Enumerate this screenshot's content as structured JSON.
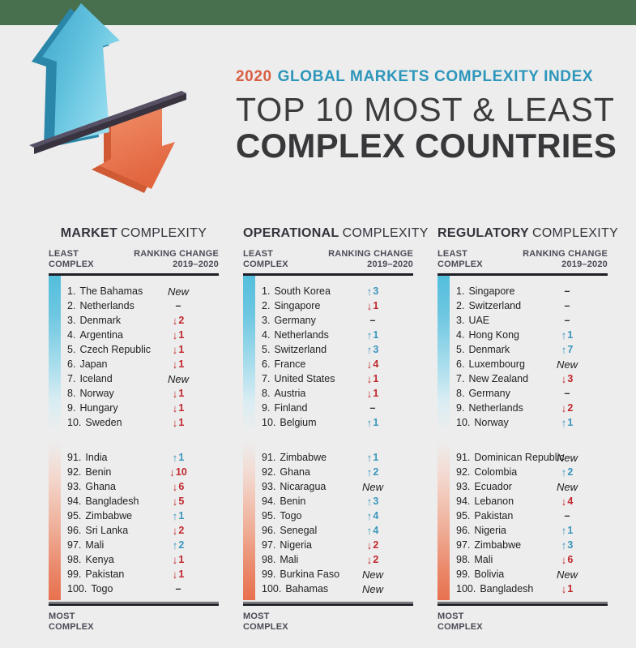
{
  "page": {
    "background": "#ededed",
    "top_band_color": "#48704e"
  },
  "header": {
    "kicker_year": "2020",
    "kicker_text": "GLOBAL MARKETS COMPLEXITY INDEX",
    "kicker_year_color": "#d95f43",
    "kicker_text_color": "#2d96ba",
    "title_line1": "TOP 10 MOST & LEAST",
    "title_line2": "COMPLEX COUNTRIES"
  },
  "hero_graphic": {
    "description": "3D blue up arrow and orange down arrow balanced on a dark plank",
    "up_arrow_color": "#52b8d8",
    "down_arrow_color": "#e8795c",
    "plank_color": "#38333f"
  },
  "labels": {
    "least_line1": "LEAST",
    "least_line2": "COMPLEX",
    "ranking_line1": "RANKING CHANGE",
    "ranking_line2": "2019–2020",
    "most_line1": "MOST",
    "most_line2": "COMPLEX"
  },
  "glyphs": {
    "up_arrow": "↑",
    "down_arrow": "↓",
    "no_change": "–",
    "new_label": "New"
  },
  "status_colors": {
    "up": "#3a96bc",
    "down": "#c0272d",
    "neutral": "#2b2b2b",
    "bar_blue": "#53bedc",
    "bar_orange": "#e7714f"
  },
  "chart_data": {
    "type": "table",
    "title": "2020 Global Markets Complexity Index — Top 10 Most & Least Complex Countries",
    "columns_note": "three ranking tables: ranks 1-10 least complex, ranks 91-100 most complex, with 2019–2020 ranking change"
  },
  "columns": [
    {
      "title_bold": "MARKET",
      "title_rest": "COMPLEXITY",
      "least": [
        {
          "rank": "1.",
          "country": "The Bahamas",
          "change": "new"
        },
        {
          "rank": "2.",
          "country": "Netherlands",
          "change": "same"
        },
        {
          "rank": "3.",
          "country": "Denmark",
          "change": "down",
          "value": "2"
        },
        {
          "rank": "4.",
          "country": "Argentina",
          "change": "down",
          "value": "1"
        },
        {
          "rank": "5.",
          "country": "Czech Republic",
          "change": "down",
          "value": "1"
        },
        {
          "rank": "6.",
          "country": "Japan",
          "change": "down",
          "value": "1"
        },
        {
          "rank": "7.",
          "country": "Iceland",
          "change": "new"
        },
        {
          "rank": "8.",
          "country": "Norway",
          "change": "down",
          "value": "1"
        },
        {
          "rank": "9.",
          "country": "Hungary",
          "change": "down",
          "value": "1"
        },
        {
          "rank": "10.",
          "country": "Sweden",
          "change": "down",
          "value": "1"
        }
      ],
      "most": [
        {
          "rank": "91.",
          "country": "India",
          "change": "up",
          "value": "1"
        },
        {
          "rank": "92.",
          "country": "Benin",
          "change": "down",
          "value": "10"
        },
        {
          "rank": "93.",
          "country": "Ghana",
          "change": "down",
          "value": "6"
        },
        {
          "rank": "94.",
          "country": "Bangladesh",
          "change": "down",
          "value": "5"
        },
        {
          "rank": "95.",
          "country": "Zimbabwe",
          "change": "up",
          "value": "1"
        },
        {
          "rank": "96.",
          "country": "Sri Lanka",
          "change": "down",
          "value": "2"
        },
        {
          "rank": "97.",
          "country": "Mali",
          "change": "up",
          "value": "2"
        },
        {
          "rank": "98.",
          "country": "Kenya",
          "change": "down",
          "value": "1"
        },
        {
          "rank": "99.",
          "country": "Pakistan",
          "change": "down",
          "value": "1"
        },
        {
          "rank": "100.",
          "country": "Togo",
          "change": "same"
        }
      ]
    },
    {
      "title_bold": "OPERATIONAL",
      "title_rest": "COMPLEXITY",
      "least": [
        {
          "rank": "1.",
          "country": "South Korea",
          "change": "up",
          "value": "3"
        },
        {
          "rank": "2.",
          "country": "Singapore",
          "change": "down",
          "value": "1"
        },
        {
          "rank": "3.",
          "country": "Germany",
          "change": "same"
        },
        {
          "rank": "4.",
          "country": "Netherlands",
          "change": "up",
          "value": "1"
        },
        {
          "rank": "5.",
          "country": "Switzerland",
          "change": "up",
          "value": "3"
        },
        {
          "rank": "6.",
          "country": "France",
          "change": "down",
          "value": "4"
        },
        {
          "rank": "7.",
          "country": "United States",
          "change": "down",
          "value": "1"
        },
        {
          "rank": "8.",
          "country": "Austria",
          "change": "down",
          "value": "1"
        },
        {
          "rank": "9.",
          "country": "Finland",
          "change": "same"
        },
        {
          "rank": "10.",
          "country": "Belgium",
          "change": "up",
          "value": "1"
        }
      ],
      "most": [
        {
          "rank": "91.",
          "country": "Zimbabwe",
          "change": "up",
          "value": "1"
        },
        {
          "rank": "92.",
          "country": "Ghana",
          "change": "up",
          "value": "2"
        },
        {
          "rank": "93.",
          "country": "Nicaragua",
          "change": "new"
        },
        {
          "rank": "94.",
          "country": "Benin",
          "change": "up",
          "value": "3"
        },
        {
          "rank": "95.",
          "country": "Togo",
          "change": "up",
          "value": "4"
        },
        {
          "rank": "96.",
          "country": "Senegal",
          "change": "up",
          "value": "4"
        },
        {
          "rank": "97.",
          "country": "Nigeria",
          "change": "down",
          "value": "2"
        },
        {
          "rank": "98.",
          "country": "Mali",
          "change": "down",
          "value": "2"
        },
        {
          "rank": "99.",
          "country": "Burkina Faso",
          "change": "new"
        },
        {
          "rank": "100.",
          "country": "Bahamas",
          "change": "new"
        }
      ]
    },
    {
      "title_bold": "REGULATORY",
      "title_rest": "COMPLEXITY",
      "least": [
        {
          "rank": "1.",
          "country": "Singapore",
          "change": "same"
        },
        {
          "rank": "2.",
          "country": "Switzerland",
          "change": "same"
        },
        {
          "rank": "3.",
          "country": "UAE",
          "change": "same"
        },
        {
          "rank": "4.",
          "country": "Hong Kong",
          "change": "up",
          "value": "1"
        },
        {
          "rank": "5.",
          "country": "Denmark",
          "change": "up",
          "value": "7"
        },
        {
          "rank": "6.",
          "country": "Luxembourg",
          "change": "new"
        },
        {
          "rank": "7.",
          "country": "New Zealand",
          "change": "down",
          "value": "3"
        },
        {
          "rank": "8.",
          "country": "Germany",
          "change": "same"
        },
        {
          "rank": "9.",
          "country": "Netherlands",
          "change": "down",
          "value": "2"
        },
        {
          "rank": "10.",
          "country": "Norway",
          "change": "up",
          "value": "1"
        }
      ],
      "most": [
        {
          "rank": "91.",
          "country": "Dominican Republic",
          "change": "new"
        },
        {
          "rank": "92.",
          "country": "Colombia",
          "change": "up",
          "value": "2"
        },
        {
          "rank": "93.",
          "country": "Ecuador",
          "change": "new"
        },
        {
          "rank": "94.",
          "country": "Lebanon",
          "change": "down",
          "value": "4"
        },
        {
          "rank": "95.",
          "country": "Pakistan",
          "change": "same"
        },
        {
          "rank": "96.",
          "country": "Nigeria",
          "change": "up",
          "value": "1"
        },
        {
          "rank": "97.",
          "country": "Zimbabwe",
          "change": "up",
          "value": "3"
        },
        {
          "rank": "98.",
          "country": "Mali",
          "change": "down",
          "value": "6"
        },
        {
          "rank": "99.",
          "country": "Bolivia",
          "change": "new"
        },
        {
          "rank": "100.",
          "country": "Bangladesh",
          "change": "down",
          "value": "1"
        }
      ]
    }
  ]
}
